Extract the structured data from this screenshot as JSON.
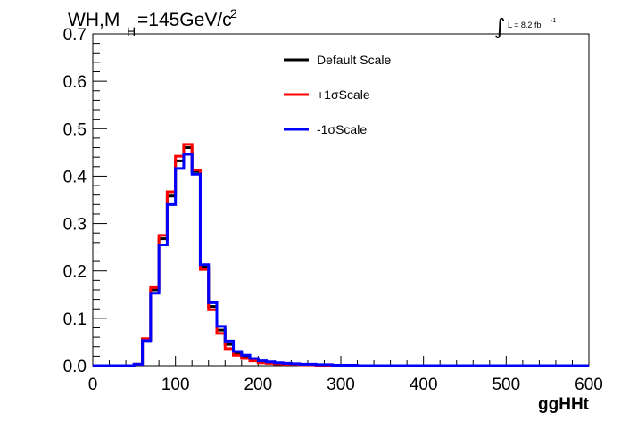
{
  "title": {
    "prefix": "WH,M",
    "subscript": "H",
    "value": "=145GeV/c",
    "superscript": "2"
  },
  "luminosity": {
    "integral_symbol": "∫",
    "text": "L = 8.2 fb",
    "superscript": "-1"
  },
  "chart_data": {
    "type": "line",
    "style": "step-histogram",
    "xlabel": "ggHHt",
    "ylabel": "",
    "xlim": [
      0,
      600
    ],
    "ylim": [
      0,
      0.7
    ],
    "x_ticks": [
      0,
      100,
      200,
      300,
      400,
      500,
      600
    ],
    "x_tick_labels": [
      "0",
      "100",
      "200",
      "300",
      "400",
      "500",
      "600"
    ],
    "y_ticks": [
      0,
      0.1,
      0.2,
      0.3,
      0.4,
      0.5,
      0.6,
      0.7
    ],
    "y_tick_labels": [
      "0.0",
      "0.1",
      "0.2",
      "0.3",
      "0.4",
      "0.5",
      "0.6",
      "0.7"
    ],
    "grid": false,
    "legend_position": "top-center",
    "bin_edges": [
      0,
      10,
      20,
      30,
      40,
      50,
      60,
      70,
      80,
      90,
      100,
      110,
      120,
      130,
      140,
      150,
      160,
      170,
      180,
      190,
      200,
      210,
      220,
      230,
      240,
      250,
      260,
      270,
      280,
      290,
      300,
      310,
      320,
      330,
      340,
      350,
      360,
      370,
      380,
      390,
      400,
      410,
      420,
      430,
      440,
      450,
      460,
      470,
      480,
      490,
      500,
      510,
      520,
      530,
      540,
      550,
      560,
      570,
      580,
      590,
      600
    ],
    "series": [
      {
        "name": "Default Scale",
        "color": "#000000",
        "values": [
          0,
          0,
          0,
          0,
          0,
          0.003,
          0.056,
          0.16,
          0.268,
          0.358,
          0.432,
          0.46,
          0.41,
          0.208,
          0.125,
          0.075,
          0.045,
          0.025,
          0.018,
          0.012,
          0.008,
          0.006,
          0.004,
          0.004,
          0.003,
          0.002,
          0.002,
          0.001,
          0.001,
          0.001,
          0.001,
          0.001,
          0,
          0,
          0,
          0,
          0,
          0,
          0,
          0,
          0,
          0,
          0,
          0,
          0,
          0,
          0,
          0,
          0,
          0,
          0,
          0,
          0,
          0,
          0,
          0,
          0,
          0,
          0,
          0
        ]
      },
      {
        "name": "+1σScale",
        "color": "#ff0000",
        "values": [
          0,
          0,
          0,
          0,
          0,
          0.003,
          0.057,
          0.165,
          0.275,
          0.367,
          0.442,
          0.467,
          0.413,
          0.203,
          0.118,
          0.068,
          0.036,
          0.022,
          0.015,
          0.01,
          0.006,
          0.005,
          0.004,
          0.003,
          0.003,
          0.002,
          0.002,
          0.001,
          0.001,
          0.001,
          0.001,
          0.001,
          0,
          0,
          0,
          0,
          0,
          0,
          0,
          0,
          0,
          0,
          0,
          0,
          0,
          0,
          0,
          0,
          0,
          0,
          0,
          0,
          0,
          0,
          0,
          0,
          0,
          0,
          0,
          0
        ]
      },
      {
        "name": "-1σScale",
        "color": "#0000ff",
        "values": [
          0,
          0,
          0,
          0,
          0,
          0.003,
          0.053,
          0.153,
          0.255,
          0.34,
          0.416,
          0.446,
          0.404,
          0.213,
          0.133,
          0.083,
          0.052,
          0.03,
          0.022,
          0.015,
          0.01,
          0.008,
          0.006,
          0.005,
          0.004,
          0.003,
          0.003,
          0.002,
          0.002,
          0.001,
          0.001,
          0.001,
          0,
          0,
          0,
          0,
          0,
          0,
          0,
          0,
          0,
          0,
          0,
          0,
          0,
          0,
          0,
          0,
          0,
          0,
          0,
          0,
          0,
          0,
          0,
          0,
          0,
          0,
          0,
          0
        ]
      }
    ]
  }
}
